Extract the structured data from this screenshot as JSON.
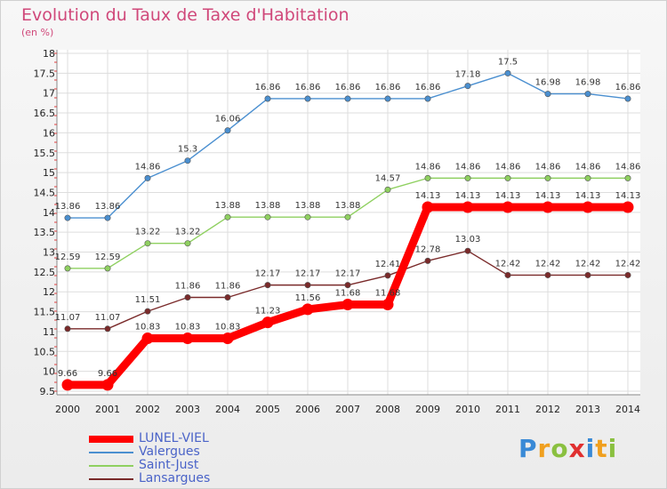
{
  "chart_data": {
    "type": "line",
    "title": "Evolution du Taux de Taxe d'Habitation",
    "subtitle": "(en %)",
    "x": [
      "2000",
      "2001",
      "2002",
      "2003",
      "2004",
      "2005",
      "2006",
      "2007",
      "2008",
      "2009",
      "2010",
      "2011",
      "2012",
      "2013",
      "2014"
    ],
    "ylim": [
      9.5,
      18
    ],
    "yticks": [
      "9.5",
      "10",
      "10.5",
      "11",
      "11.5",
      "12",
      "12.5",
      "13",
      "13.5",
      "14",
      "14.5",
      "15",
      "15.5",
      "16",
      "16.5",
      "17",
      "17.5",
      "18"
    ],
    "grid": true,
    "legend_position": "bottom-left",
    "series": [
      {
        "name": "LUNEL-VIEL",
        "color": "#ff0000",
        "values": [
          9.66,
          9.66,
          10.83,
          10.83,
          10.83,
          11.23,
          11.56,
          11.68,
          11.68,
          14.13,
          14.13,
          14.13,
          14.13,
          14.13,
          14.13
        ],
        "labels": [
          "9.66",
          "9.66",
          "10.83",
          "10.83",
          "10.83",
          "11.23",
          "11.56",
          "11.68",
          "11.68",
          "14.13",
          "14.13",
          "14.13",
          "14.13",
          "14.13",
          "14.13"
        ]
      },
      {
        "name": "Valergues",
        "color": "#4a8fd0",
        "values": [
          13.86,
          13.86,
          14.86,
          15.3,
          16.06,
          16.86,
          16.86,
          16.86,
          16.86,
          16.86,
          17.18,
          17.5,
          16.98,
          16.98,
          16.86
        ],
        "labels": [
          "13.86",
          "13.86",
          "14.86",
          "15.3",
          "16.06",
          "16.86",
          "16.86",
          "16.86",
          "16.86",
          "16.86",
          "17.18",
          "17.5",
          "16.98",
          "16.98",
          "16.86"
        ]
      },
      {
        "name": "Saint-Just",
        "color": "#8fd060",
        "values": [
          12.59,
          12.59,
          13.22,
          13.22,
          13.88,
          13.88,
          13.88,
          13.88,
          14.57,
          14.86,
          14.86,
          14.86,
          14.86,
          14.86,
          14.86
        ],
        "labels": [
          "12.59",
          "12.59",
          "13.22",
          "13.22",
          "13.88",
          "13.88",
          "13.88",
          "13.88",
          "14.57",
          "14.86",
          "14.86",
          "14.86",
          "14.86",
          "14.86",
          "14.86"
        ]
      },
      {
        "name": "Lansargues",
        "color": "#7a2a2a",
        "values": [
          11.07,
          11.07,
          11.51,
          11.86,
          11.86,
          12.17,
          12.17,
          12.17,
          12.41,
          12.78,
          13.03,
          12.42,
          12.42,
          12.42,
          12.42
        ],
        "labels": [
          "11.07",
          "11.07",
          "11.51",
          "11.86",
          "11.86",
          "12.17",
          "12.17",
          "12.17",
          "12.41",
          "12.78",
          "13.03",
          "12.42",
          "12.42",
          "12.42",
          "12.42"
        ]
      }
    ]
  },
  "brand": {
    "letters": [
      "P",
      "r",
      "o",
      "x",
      "i",
      "t",
      "i"
    ],
    "colors": [
      "#3a8ad6",
      "#f0a020",
      "#8ac040",
      "#e03030",
      "#3a8ad6",
      "#f0a020",
      "#8ac040"
    ]
  }
}
